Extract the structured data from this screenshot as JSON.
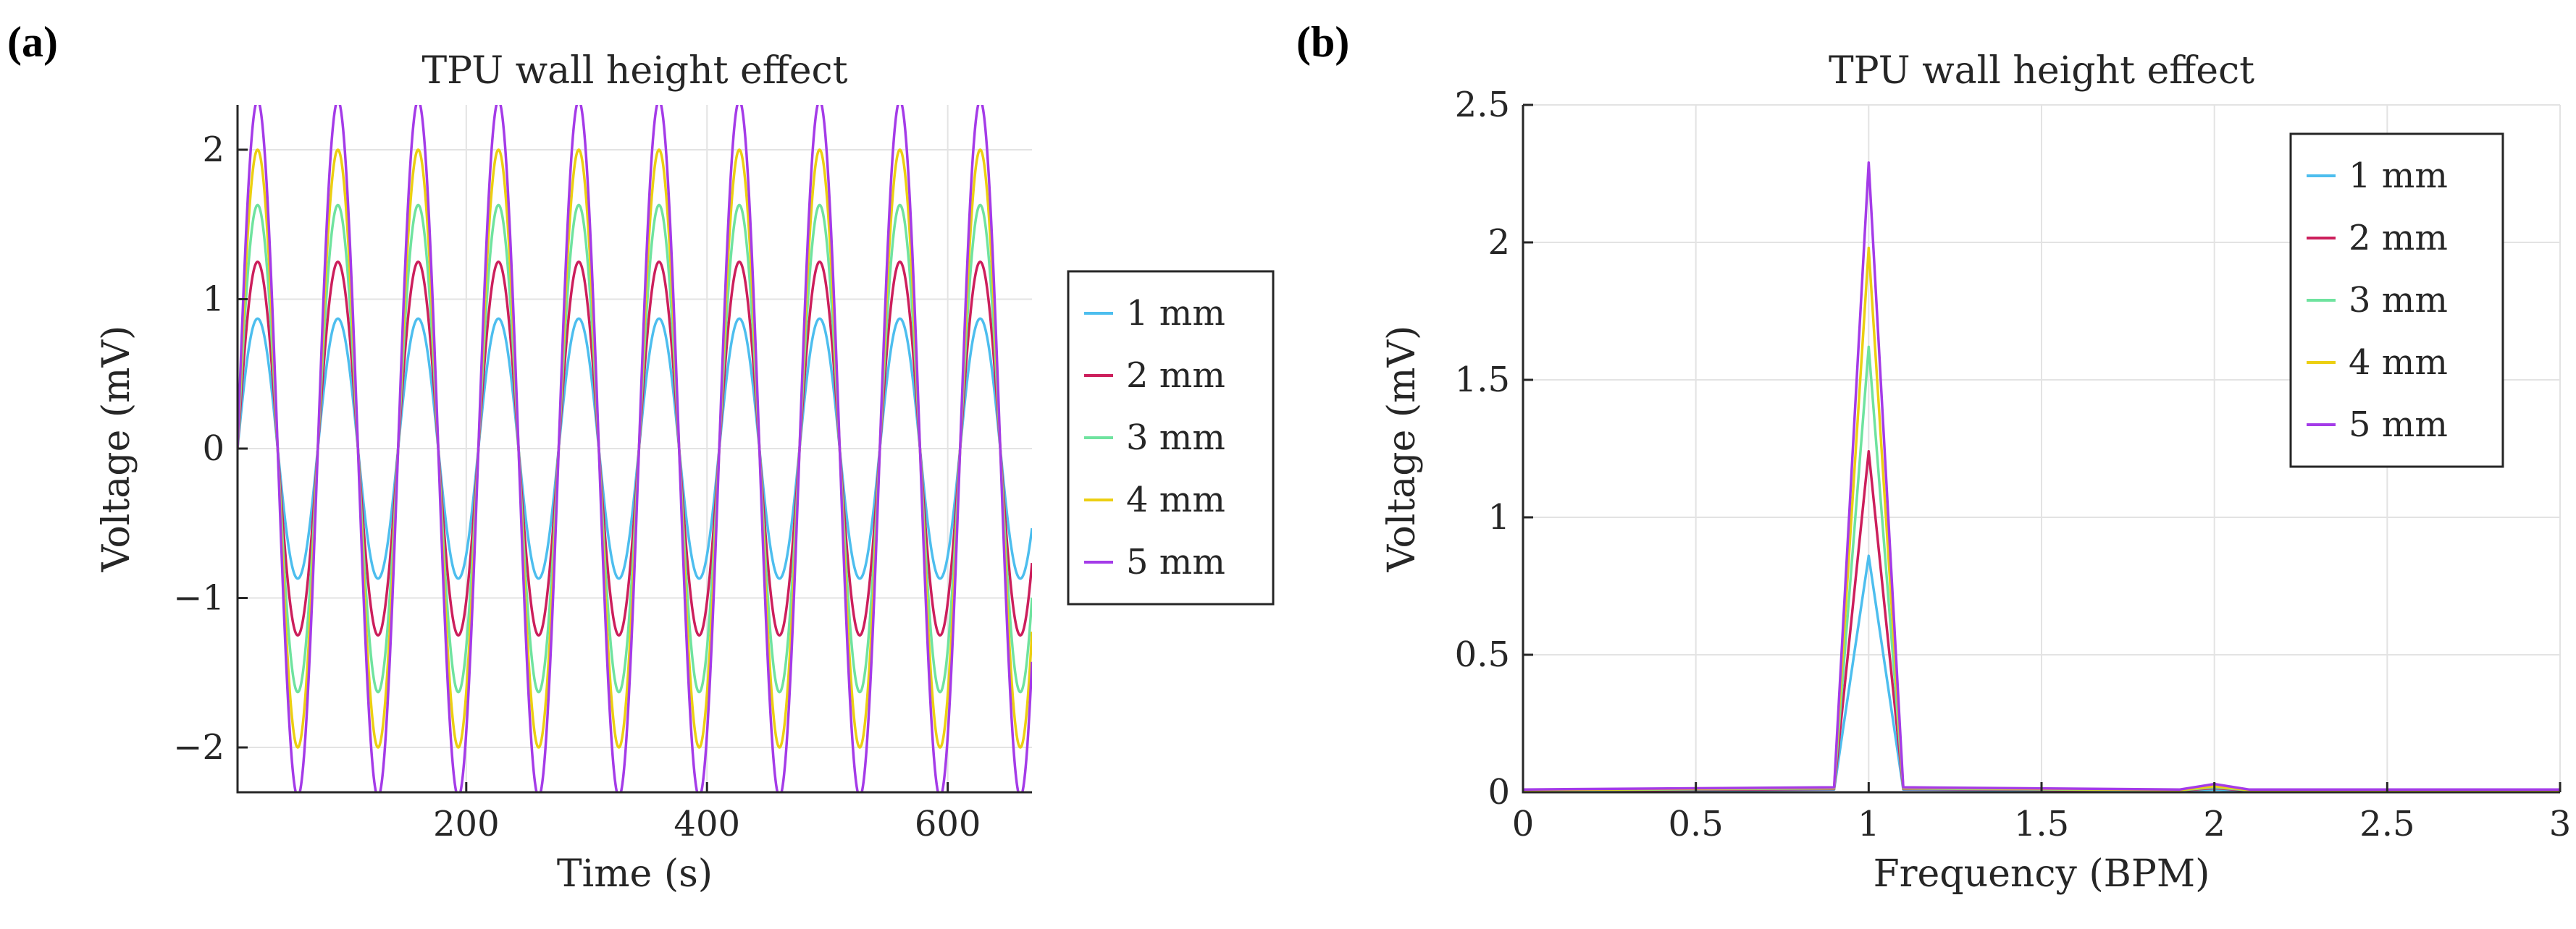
{
  "panels": [
    {
      "label": "(a)",
      "chart": {
        "type": "line",
        "title": "TPU wall height effect",
        "xlabel": "Time (s)",
        "ylabel": "Voltage (mV)",
        "xlim": [
          10,
          670
        ],
        "ylim": [
          -2.3,
          2.3
        ],
        "xticks": [
          200,
          400,
          600
        ],
        "yticks": [
          2,
          1,
          0,
          -1,
          -2
        ],
        "ytick_labels": [
          "2",
          "1",
          "0",
          "−1",
          "−2"
        ],
        "period_s": 66.7,
        "phase_offset_s": 10,
        "legend_position": "outside-right",
        "series": [
          {
            "name": "1 mm",
            "amplitude": 0.87,
            "color": "#4dbeee"
          },
          {
            "name": "2 mm",
            "amplitude": 1.25,
            "color": "#cc1f5c"
          },
          {
            "name": "3 mm",
            "amplitude": 1.63,
            "color": "#6fe39f"
          },
          {
            "name": "4 mm",
            "amplitude": 2.0,
            "color": "#eccf12"
          },
          {
            "name": "5 mm",
            "amplitude": 2.33,
            "color": "#a43be8"
          }
        ]
      }
    },
    {
      "label": "(b)",
      "chart": {
        "type": "line",
        "title": "TPU wall height effect",
        "xlabel": "Frequency (BPM)",
        "ylabel": "Voltage (mV)",
        "xlim": [
          0,
          3
        ],
        "ylim": [
          0,
          2.5
        ],
        "xticks": [
          0,
          0.5,
          1,
          1.5,
          2,
          2.5,
          3
        ],
        "xtick_labels": [
          "0",
          "0.5",
          "1",
          "1.5",
          "2",
          "2.5",
          "3"
        ],
        "yticks": [
          0,
          0.5,
          1,
          1.5,
          2,
          2.5
        ],
        "ytick_labels": [
          "0",
          "0.5",
          "1",
          "1.5",
          "2",
          "2.5"
        ],
        "x": [
          0,
          0.9,
          1.0,
          1.1,
          1.9,
          2.0,
          2.1,
          3.0
        ],
        "legend_position": "top-right",
        "series": [
          {
            "name": "1 mm",
            "color": "#4dbeee",
            "values": [
              0.005,
              0.01,
              0.86,
              0.01,
              0.005,
              0.01,
              0.005,
              0.005
            ]
          },
          {
            "name": "2 mm",
            "color": "#cc1f5c",
            "values": [
              0.006,
              0.012,
              1.24,
              0.012,
              0.006,
              0.015,
              0.006,
              0.006
            ]
          },
          {
            "name": "3 mm",
            "color": "#6fe39f",
            "values": [
              0.007,
              0.014,
              1.62,
              0.014,
              0.007,
              0.018,
              0.007,
              0.007
            ]
          },
          {
            "name": "4 mm",
            "color": "#eccf12",
            "values": [
              0.008,
              0.016,
              1.98,
              0.016,
              0.008,
              0.022,
              0.008,
              0.008
            ]
          },
          {
            "name": "5 mm",
            "color": "#a43be8",
            "values": [
              0.01,
              0.018,
              2.29,
              0.018,
              0.01,
              0.03,
              0.01,
              0.01
            ]
          }
        ]
      }
    }
  ],
  "chart_data": [
    {
      "type": "line",
      "title": "TPU wall height effect",
      "xlabel": "Time (s)",
      "ylabel": "Voltage (mV)",
      "xlim": [
        10,
        670
      ],
      "ylim": [
        -2.3,
        2.3
      ],
      "description_of_values": "sinusoids with period ~66.7 s starting at 0 at t=10 s",
      "series": [
        {
          "name": "1 mm",
          "amplitude": 0.87
        },
        {
          "name": "2 mm",
          "amplitude": 1.25
        },
        {
          "name": "3 mm",
          "amplitude": 1.63
        },
        {
          "name": "4 mm",
          "amplitude": 2.0
        },
        {
          "name": "5 mm",
          "amplitude": 2.33
        }
      ]
    },
    {
      "type": "line",
      "title": "TPU wall height effect",
      "xlabel": "Frequency (BPM)",
      "ylabel": "Voltage (mV)",
      "xlim": [
        0,
        3
      ],
      "ylim": [
        0,
        2.5
      ],
      "x": [
        0,
        0.9,
        1.0,
        1.1,
        1.9,
        2.0,
        2.1,
        3.0
      ],
      "series": [
        {
          "name": "1 mm",
          "values": [
            0.005,
            0.01,
            0.86,
            0.01,
            0.005,
            0.01,
            0.005,
            0.005
          ]
        },
        {
          "name": "2 mm",
          "values": [
            0.006,
            0.012,
            1.24,
            0.012,
            0.006,
            0.015,
            0.006,
            0.006
          ]
        },
        {
          "name": "3 mm",
          "values": [
            0.007,
            0.014,
            1.62,
            0.014,
            0.007,
            0.018,
            0.007,
            0.007
          ]
        },
        {
          "name": "4 mm",
          "values": [
            0.008,
            0.016,
            1.98,
            0.016,
            0.008,
            0.022,
            0.008,
            0.008
          ]
        },
        {
          "name": "5 mm",
          "values": [
            0.01,
            0.018,
            2.29,
            0.018,
            0.01,
            0.03,
            0.01,
            0.01
          ]
        }
      ]
    }
  ]
}
